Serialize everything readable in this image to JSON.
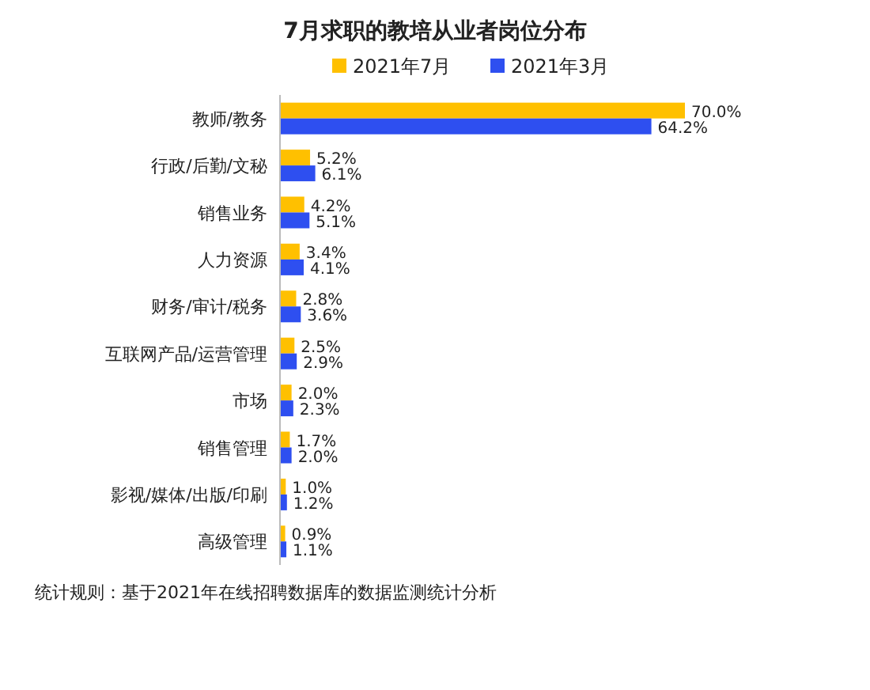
{
  "chart_data": {
    "type": "bar",
    "orientation": "horizontal",
    "title": "7月求职的教培从业者岗位分布",
    "categories": [
      "教师/教务",
      "行政/后勤/文秘",
      "销售业务",
      "人力资源",
      "财务/审计/税务",
      "互联网产品/运营管理",
      "市场",
      "销售管理",
      "影视/媒体/出版/印刷",
      "高级管理"
    ],
    "series": [
      {
        "name": "2021年7月",
        "color": "#ffc000",
        "values": [
          70.0,
          5.2,
          4.2,
          3.4,
          2.8,
          2.5,
          2.0,
          1.7,
          1.0,
          0.9
        ],
        "value_labels": [
          "70.0%",
          "5.2%",
          "4.2%",
          "3.4%",
          "2.8%",
          "2.5%",
          "2.0%",
          "1.7%",
          "1.0%",
          "0.9%"
        ]
      },
      {
        "name": "2021年3月",
        "color": "#2e4ff0",
        "values": [
          64.2,
          6.1,
          5.1,
          4.1,
          3.6,
          2.9,
          2.3,
          2.0,
          1.2,
          1.1
        ],
        "value_labels": [
          "64.2%",
          "6.1%",
          "5.1%",
          "4.1%",
          "3.6%",
          "2.9%",
          "2.3%",
          "2.0%",
          "1.2%",
          "1.1%"
        ]
      }
    ],
    "legend": "top",
    "annotations": [
      "统计规则：基于2021年在线招聘数据库的数据监测统计分析"
    ]
  }
}
